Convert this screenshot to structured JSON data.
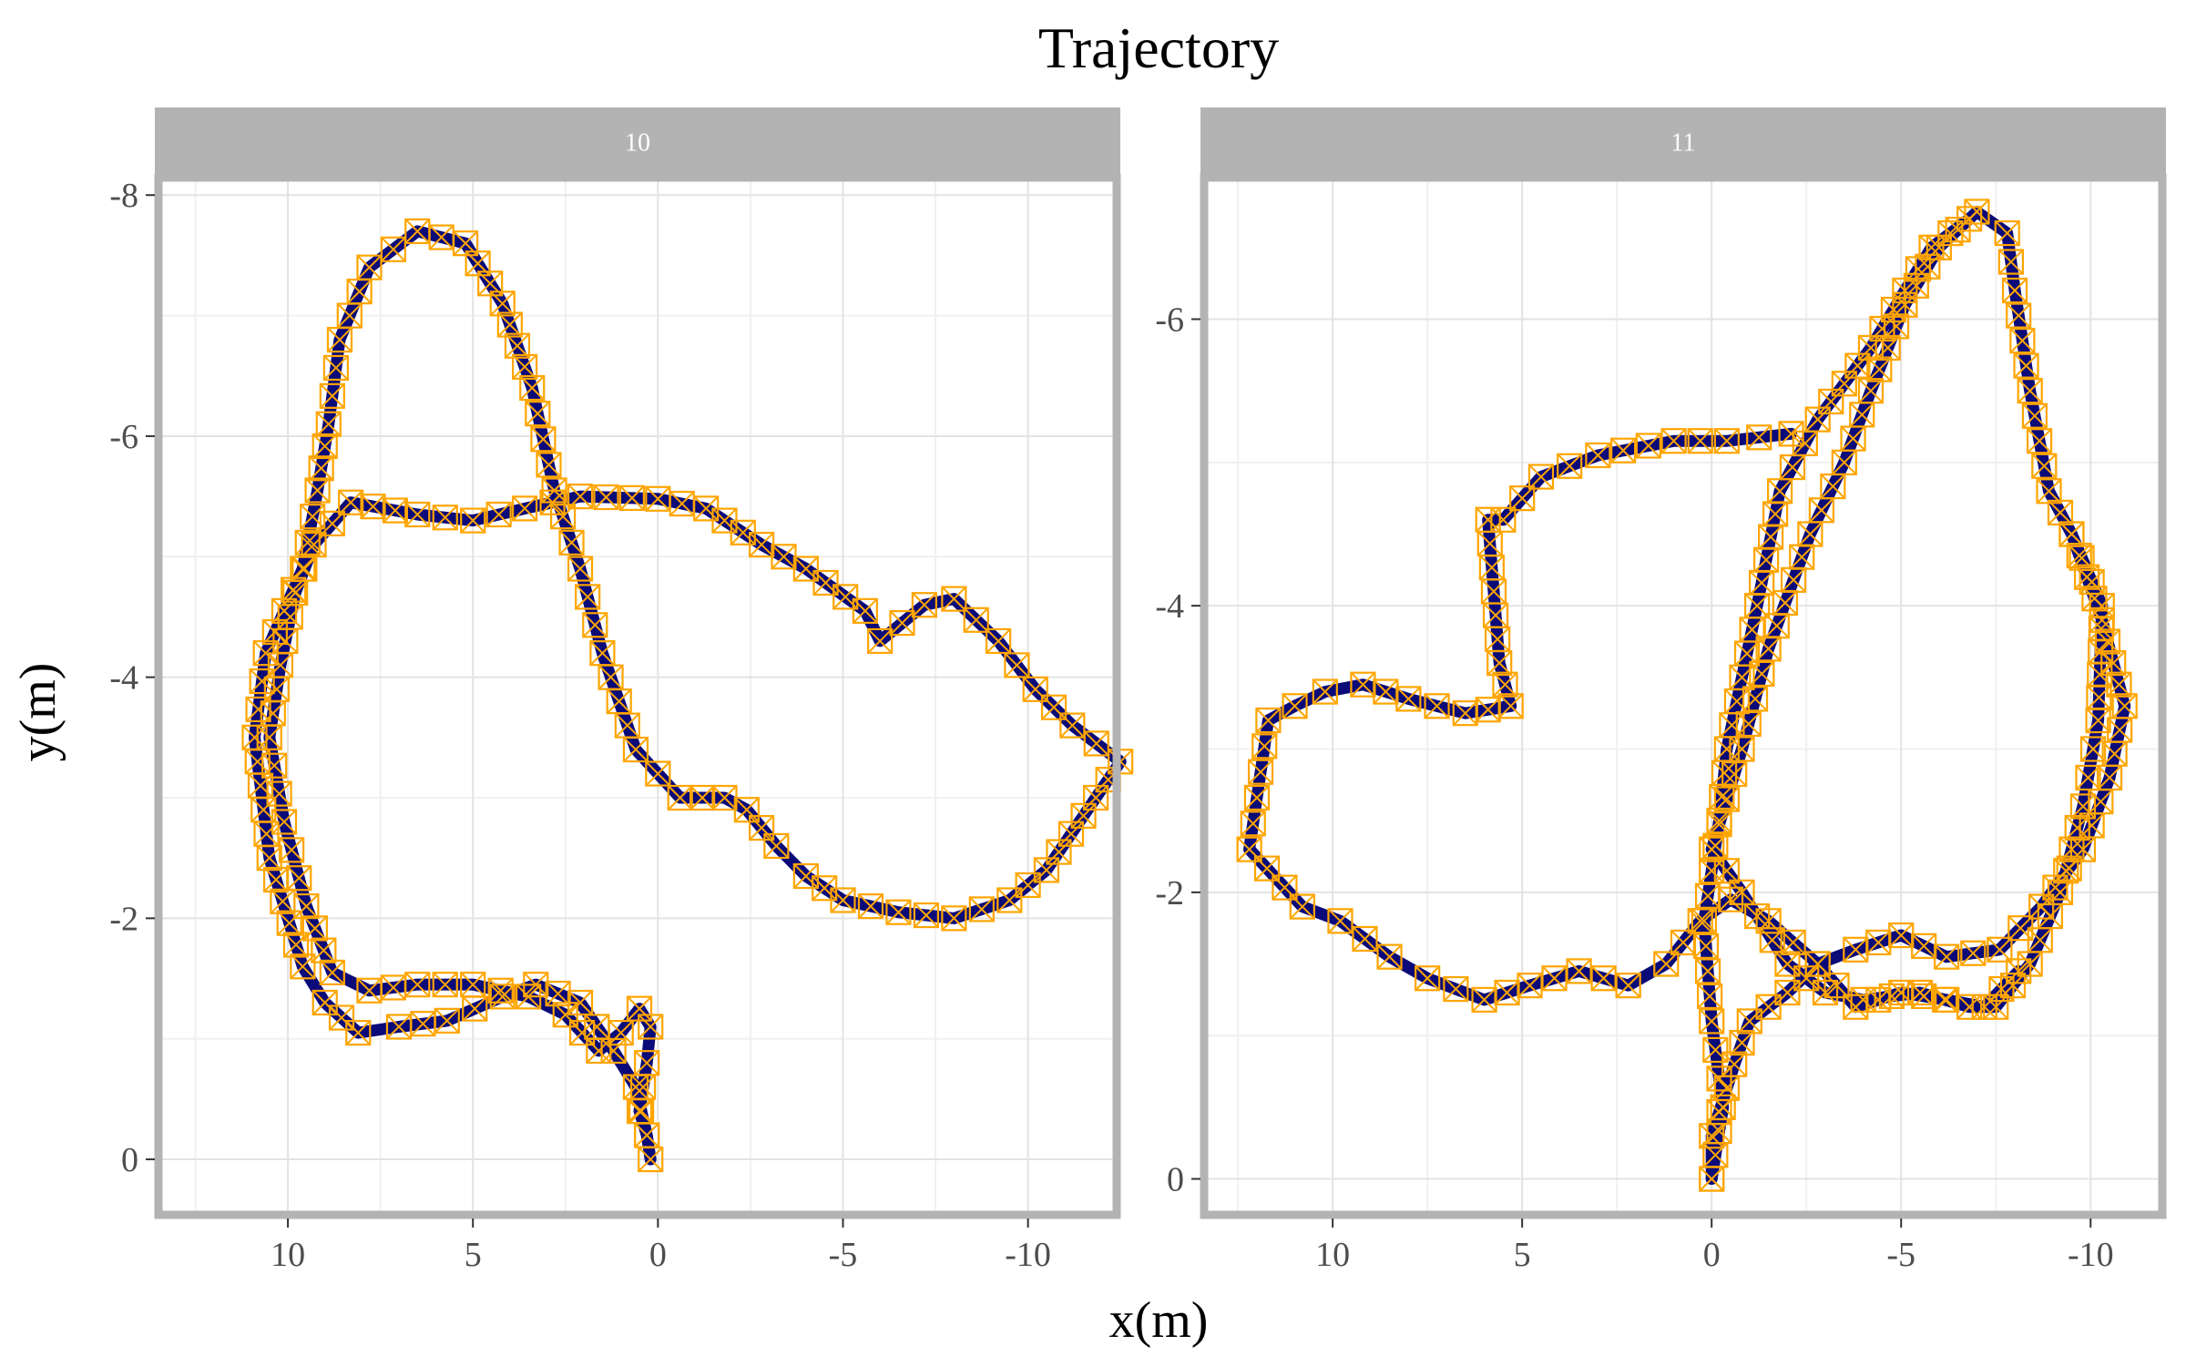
{
  "chart_data": {
    "type": "line",
    "title": "Trajectory",
    "xlabel": "x(m)",
    "ylabel": "y(m)",
    "x_reversed": true,
    "y_reversed": true,
    "grid": true,
    "colors": {
      "path": "#0a0a78",
      "marker": "#ffa500",
      "strip": "#b3b3b3",
      "grid": "#e3e3e3",
      "panel_border": "#b3b3b3"
    },
    "marker": "square-with-cross",
    "panels": [
      {
        "strip_label": "10",
        "xlim": [
          13.3,
          -12.2
        ],
        "ylim": [
          0.4,
          -8.1
        ],
        "x_ticks": [
          10,
          5,
          0,
          -5,
          -10
        ],
        "y_ticks": [
          0,
          -2,
          -4,
          -6,
          -8
        ],
        "series": [
          {
            "name": "",
            "points": [
              [
                0.2,
                0
              ],
              [
                0.3,
                -0.2
              ],
              [
                0.5,
                -0.4
              ],
              [
                0.3,
                -0.8
              ],
              [
                0.2,
                -1.1
              ],
              [
                0.5,
                -1.25
              ],
              [
                1.0,
                -1.05
              ],
              [
                1.6,
                -0.9
              ],
              [
                2.5,
                -1.2
              ],
              [
                3.5,
                -1.35
              ],
              [
                5.0,
                -1.45
              ],
              [
                6.5,
                -1.45
              ],
              [
                7.8,
                -1.4
              ],
              [
                8.8,
                -1.55
              ],
              [
                9.5,
                -2.1
              ],
              [
                10.1,
                -2.8
              ],
              [
                10.5,
                -3.5
              ],
              [
                10.2,
                -4.1
              ],
              [
                9.8,
                -4.7
              ],
              [
                9.3,
                -5.1
              ],
              [
                8.3,
                -5.45
              ],
              [
                6.5,
                -5.35
              ],
              [
                5.0,
                -5.3
              ],
              [
                3.6,
                -5.4
              ],
              [
                2.1,
                -5.5
              ],
              [
                0.0,
                -5.48
              ],
              [
                -1.3,
                -5.4
              ],
              [
                -2.8,
                -5.1
              ],
              [
                -4.0,
                -4.9
              ],
              [
                -5.6,
                -4.55
              ],
              [
                -6.0,
                -4.3
              ],
              [
                -7.2,
                -4.6
              ],
              [
                -8.0,
                -4.65
              ],
              [
                -9.2,
                -4.3
              ],
              [
                -10.2,
                -3.9
              ],
              [
                -11.2,
                -3.6
              ],
              [
                -12.5,
                -3.3
              ],
              [
                -10.5,
                -2.4
              ],
              [
                -9.5,
                -2.15
              ],
              [
                -8.0,
                -2.0
              ],
              [
                -6.5,
                -2.05
              ],
              [
                -5.0,
                -2.15
              ],
              [
                -4.0,
                -2.35
              ],
              [
                -3.2,
                -2.6
              ],
              [
                -2.4,
                -2.9
              ],
              [
                -1.8,
                -3.0
              ],
              [
                -0.6,
                -3.0
              ],
              [
                0.6,
                -3.4
              ],
              [
                1.5,
                -4.2
              ],
              [
                2.1,
                -4.9
              ],
              [
                2.8,
                -5.55
              ],
              [
                3.4,
                -6.4
              ],
              [
                4.2,
                -7.1
              ],
              [
                5.2,
                -7.6
              ],
              [
                6.5,
                -7.7
              ],
              [
                7.8,
                -7.4
              ],
              [
                8.6,
                -6.8
              ],
              [
                8.9,
                -6.1
              ],
              [
                9.2,
                -5.55
              ],
              [
                9.6,
                -4.9
              ],
              [
                10.6,
                -4.2
              ],
              [
                10.9,
                -3.5
              ],
              [
                10.5,
                -2.5
              ],
              [
                9.6,
                -1.6
              ],
              [
                9.0,
                -1.3
              ],
              [
                8.1,
                -1.05
              ],
              [
                7.0,
                -1.1
              ],
              [
                5.7,
                -1.15
              ],
              [
                4.2,
                -1.35
              ],
              [
                3.3,
                -1.45
              ],
              [
                2.1,
                -1.3
              ],
              [
                1.2,
                -0.9
              ],
              [
                0.6,
                -0.6
              ],
              [
                0.3,
                -0.2
              ]
            ]
          }
        ]
      },
      {
        "strip_label": "11",
        "xlim": [
          13.2,
          -11.7
        ],
        "ylim": [
          0.2,
          -6.95
        ],
        "x_ticks": [
          10,
          5,
          0,
          -5,
          -10
        ],
        "y_ticks": [
          0,
          -2,
          -4,
          -6
        ],
        "series": [
          {
            "name": "",
            "points": [
              [
                0.0,
                0.0
              ],
              [
                0.0,
                -0.3
              ],
              [
                -0.6,
                -0.8
              ],
              [
                -1.0,
                -1.1
              ],
              [
                -2.0,
                -1.3
              ],
              [
                -2.8,
                -1.5
              ],
              [
                -3.8,
                -1.6
              ],
              [
                -5.0,
                -1.7
              ],
              [
                -6.2,
                -1.55
              ],
              [
                -7.6,
                -1.6
              ],
              [
                -8.7,
                -1.9
              ],
              [
                -9.8,
                -2.3
              ],
              [
                -10.5,
                -2.8
              ],
              [
                -10.9,
                -3.3
              ],
              [
                -10.3,
                -3.9
              ],
              [
                -9.5,
                -4.5
              ],
              [
                -8.9,
                -4.8
              ],
              [
                -8.4,
                -5.5
              ],
              [
                -8.0,
                -6.2
              ],
              [
                -7.8,
                -6.6
              ],
              [
                -7.0,
                -6.75
              ],
              [
                -6.0,
                -6.5
              ],
              [
                -5.1,
                -6.1
              ],
              [
                -4.2,
                -5.5
              ],
              [
                -3.5,
                -5.0
              ],
              [
                -2.6,
                -4.5
              ],
              [
                -1.5,
                -3.7
              ],
              [
                -0.8,
                -3.0
              ],
              [
                0.0,
                -2.3
              ],
              [
                -0.8,
                -2.0
              ],
              [
                -2.0,
                -1.5
              ],
              [
                -3.0,
                -1.3
              ],
              [
                -4.0,
                -1.25
              ],
              [
                -5.5,
                -1.3
              ],
              [
                -6.8,
                -1.2
              ],
              [
                -7.5,
                -1.2
              ],
              [
                -8.4,
                -1.5
              ],
              [
                -9.2,
                -2.0
              ],
              [
                -9.8,
                -2.6
              ],
              [
                -10.2,
                -3.2
              ],
              [
                -10.3,
                -4.0
              ],
              [
                -9.5,
                -4.5
              ]
            ]
          },
          {
            "name": "",
            "points": [
              [
                0.0,
                0.0
              ],
              [
                -0.3,
                -0.5
              ],
              [
                0.0,
                -1.1
              ],
              [
                0.2,
                -1.8
              ],
              [
                -0.2,
                -2.5
              ],
              [
                -0.4,
                -3.0
              ],
              [
                -1.2,
                -4.0
              ],
              [
                -1.8,
                -4.8
              ],
              [
                -2.8,
                -5.3
              ],
              [
                -4.2,
                -5.8
              ],
              [
                -5.1,
                -6.2
              ],
              [
                -5.8,
                -6.5
              ],
              [
                -6.8,
                -6.7
              ]
            ]
          },
          {
            "name": "",
            "points": [
              [
                -2.1,
                -5.2
              ],
              [
                -0.4,
                -5.15
              ],
              [
                1.0,
                -5.15
              ],
              [
                3.0,
                -5.05
              ],
              [
                4.5,
                -4.9
              ],
              [
                5.5,
                -4.6
              ],
              [
                5.9,
                -4.6
              ],
              [
                5.6,
                -3.6
              ],
              [
                5.3,
                -3.3
              ],
              [
                6.5,
                -3.25
              ],
              [
                8.0,
                -3.35
              ],
              [
                9.2,
                -3.45
              ],
              [
                10.2,
                -3.4
              ],
              [
                11.0,
                -3.3
              ],
              [
                11.7,
                -3.2
              ],
              [
                12.2,
                -2.3
              ],
              [
                10.8,
                -1.9
              ],
              [
                9.8,
                -1.8
              ],
              [
                8.5,
                -1.55
              ],
              [
                7.5,
                -1.4
              ],
              [
                6.0,
                -1.25
              ],
              [
                4.8,
                -1.35
              ],
              [
                3.5,
                -1.45
              ],
              [
                2.2,
                -1.35
              ],
              [
                1.2,
                -1.5
              ],
              [
                0.3,
                -1.8
              ],
              [
                -0.5,
                -1.95
              ],
              [
                -1.5,
                -1.8
              ],
              [
                -2.8,
                -1.5
              ],
              [
                -3.8,
                -1.2
              ],
              [
                -5.0,
                -1.3
              ],
              [
                -6.2,
                -1.25
              ],
              [
                -7.2,
                -1.2
              ],
              [
                -8.1,
                -1.45
              ]
            ]
          }
        ]
      }
    ]
  }
}
